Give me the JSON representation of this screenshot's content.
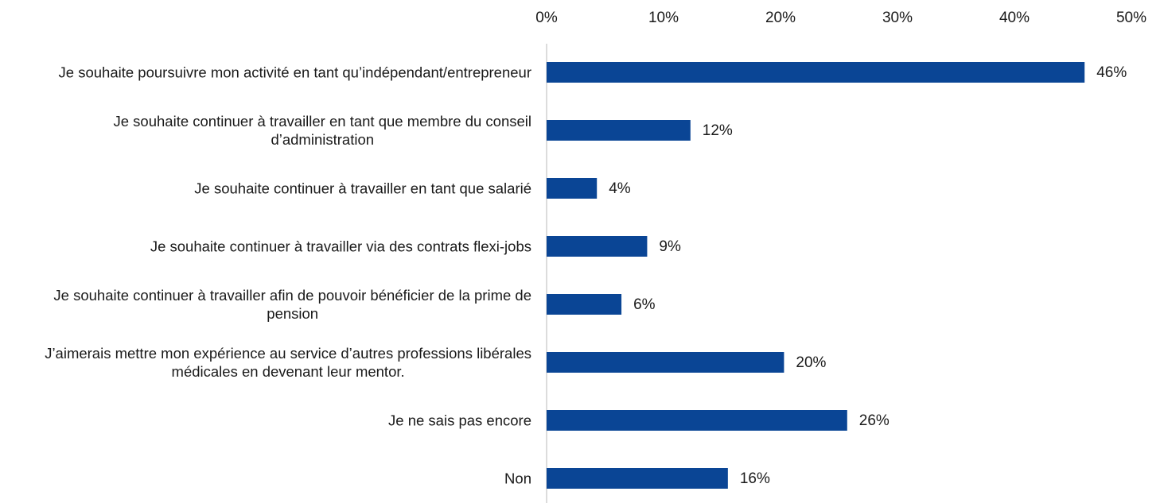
{
  "chart_data": {
    "type": "bar",
    "orientation": "horizontal",
    "categories": [
      "Je souhaite poursuivre mon activité en tant qu’indépendant/entrepreneur",
      "Je souhaite continuer à travailler en tant que membre du conseil\nd’administration",
      "Je souhaite continuer à travailler en tant que salarié",
      "Je souhaite continuer à travailler via des contrats flexi-jobs",
      "Je souhaite continuer à travailler afin de pouvoir bénéficier de la prime de\npension",
      "J’aimerais mettre mon expérience au service d’autres professions libérales\nmédicales en devenant leur mentor.",
      "Je ne sais pas encore",
      "Non"
    ],
    "values": [
      46,
      12.3,
      4.3,
      8.6,
      6.4,
      20.3,
      25.7,
      15.5
    ],
    "value_labels": [
      "46%",
      "12%",
      "4%",
      "9%",
      "6%",
      "20%",
      "26%",
      "16%"
    ],
    "color": "#0a4595",
    "xlim": [
      0,
      50
    ],
    "xticks": [
      {
        "value": 0,
        "label": "0%"
      },
      {
        "value": 10,
        "label": "10%"
      },
      {
        "value": 20,
        "label": "20%"
      },
      {
        "value": 30,
        "label": "30%"
      },
      {
        "value": 40,
        "label": "40%"
      },
      {
        "value": 50,
        "label": "50%"
      }
    ],
    "grid": false
  }
}
